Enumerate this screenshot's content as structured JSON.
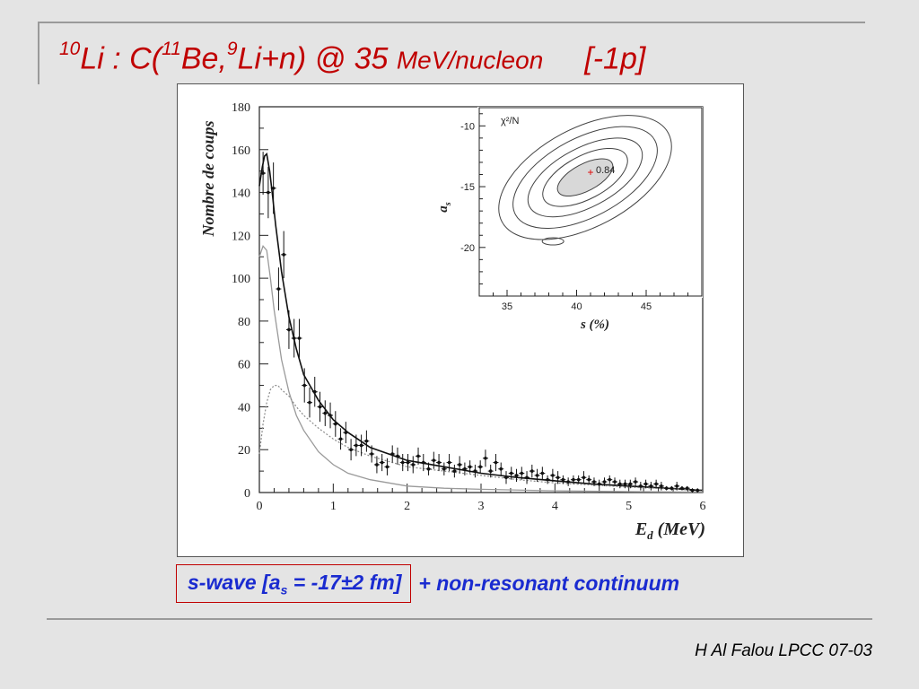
{
  "title": {
    "nucleus_mass": "10",
    "nucleus": "Li : ",
    "reaction_open": "C(",
    "beam_mass": "11",
    "beam": "Be,",
    "frag_mass": "9",
    "frag": "Li+n) @ 35 ",
    "units": "MeV/nucleon",
    "tag": "[-1p]"
  },
  "caption": {
    "boxed_prefix": "s-wave [a",
    "boxed_sub": "s",
    "boxed_suffix": " = -17±2 fm]",
    "rest": "+  non-resonant continuum"
  },
  "footer": "H Al Falou LPCC 07-03",
  "colors": {
    "title": "#c00000",
    "caption": "#1a2bd0",
    "caption_box": "#c00000"
  },
  "chart_data": [
    {
      "type": "line",
      "title": "",
      "xlabel": "E",
      "xlabel_sub": "d",
      "xlabel_unit": " (MeV)",
      "ylabel": "Nombre de coups",
      "xlim": [
        0,
        6
      ],
      "ylim": [
        0,
        180
      ],
      "x_ticks": [
        0,
        1,
        2,
        3,
        4,
        5,
        6
      ],
      "y_ticks": [
        0,
        20,
        40,
        60,
        80,
        100,
        120,
        140,
        160,
        180
      ],
      "grid": false,
      "data_points": {
        "x": [
          0.05,
          0.12,
          0.19,
          0.26,
          0.33,
          0.4,
          0.47,
          0.54,
          0.61,
          0.68,
          0.75,
          0.82,
          0.89,
          0.96,
          1.03,
          1.1,
          1.17,
          1.24,
          1.31,
          1.38,
          1.45,
          1.52,
          1.59,
          1.66,
          1.73,
          1.8,
          1.87,
          1.94,
          2.01,
          2.08,
          2.15,
          2.22,
          2.29,
          2.36,
          2.43,
          2.5,
          2.57,
          2.64,
          2.71,
          2.78,
          2.85,
          2.92,
          2.99,
          3.06,
          3.13,
          3.2,
          3.27,
          3.34,
          3.41,
          3.48,
          3.55,
          3.62,
          3.69,
          3.76,
          3.83,
          3.9,
          3.97,
          4.04,
          4.11,
          4.18,
          4.25,
          4.32,
          4.39,
          4.46,
          4.53,
          4.6,
          4.67,
          4.74,
          4.81,
          4.88,
          4.95,
          5.02,
          5.09,
          5.16,
          5.23,
          5.3,
          5.37,
          5.44,
          5.51,
          5.58,
          5.65,
          5.72,
          5.79,
          5.86,
          5.93
        ],
        "y": [
          149,
          140,
          142,
          95,
          111,
          76,
          72,
          72,
          50,
          42,
          47,
          40,
          37,
          36,
          32,
          25,
          28,
          20,
          22,
          22,
          24,
          18,
          13,
          14,
          12,
          18,
          17,
          14,
          14,
          13,
          17,
          14,
          11,
          15,
          14,
          11,
          14,
          10,
          13,
          11,
          12,
          10,
          12,
          16,
          10,
          14,
          11,
          7,
          9,
          8,
          9,
          7,
          10,
          8,
          9,
          6,
          8,
          7,
          6,
          5,
          6,
          6,
          7,
          6,
          5,
          4,
          5,
          6,
          5,
          4,
          4,
          4,
          5,
          3,
          4,
          3,
          4,
          3,
          2,
          2,
          3,
          2,
          2,
          1,
          1
        ],
        "err": [
          10,
          12,
          12,
          10,
          11,
          9,
          9,
          9,
          8,
          7,
          7,
          7,
          6,
          6,
          6,
          5,
          5,
          5,
          5,
          5,
          5,
          4,
          4,
          4,
          4,
          4,
          4,
          4,
          4,
          4,
          4,
          4,
          3,
          4,
          4,
          3,
          4,
          3,
          4,
          3,
          3,
          3,
          3,
          4,
          3,
          4,
          3,
          3,
          3,
          3,
          3,
          3,
          3,
          3,
          3,
          2,
          3,
          3,
          2,
          2,
          2,
          2,
          3,
          2,
          2,
          2,
          2,
          2,
          2,
          2,
          2,
          2,
          2,
          2,
          2,
          2,
          2,
          2,
          1,
          1,
          2,
          1,
          1,
          1,
          1
        ]
      },
      "curves": [
        {
          "style": "solid-black",
          "x": [
            0,
            0.04,
            0.07,
            0.1,
            0.14,
            0.18,
            0.22,
            0.3,
            0.4,
            0.5,
            0.6,
            0.8,
            1.0,
            1.2,
            1.5,
            2.0,
            2.5,
            3.0,
            3.5,
            4.0,
            4.5,
            5.0,
            5.5,
            6.0
          ],
          "y": [
            143,
            152,
            157,
            158,
            150,
            138,
            125,
            103,
            82,
            67,
            55,
            43,
            34,
            28,
            21,
            15,
            12,
            9,
            7,
            5.5,
            4,
            3,
            2,
            1
          ]
        },
        {
          "style": "solid-gray",
          "x": [
            0,
            0.05,
            0.1,
            0.15,
            0.2,
            0.3,
            0.4,
            0.5,
            0.6,
            0.8,
            1.0,
            1.2,
            1.5,
            2.0,
            2.5,
            3.0,
            4.0,
            5.0,
            6.0
          ],
          "y": [
            110,
            115,
            113,
            100,
            85,
            62,
            47,
            36,
            29,
            19,
            13,
            9,
            6,
            3,
            2,
            1.5,
            0.8,
            0.4,
            0.2
          ]
        },
        {
          "style": "dotted-gray",
          "x": [
            0,
            0.05,
            0.1,
            0.15,
            0.2,
            0.25,
            0.3,
            0.4,
            0.5,
            0.6,
            0.8,
            1.0,
            1.2,
            1.5,
            2.0,
            2.5,
            3.0,
            3.5,
            4.0,
            4.5,
            5.0,
            5.5,
            6.0
          ],
          "y": [
            18,
            32,
            42,
            48,
            50,
            50,
            48,
            45,
            40,
            36,
            30,
            25,
            21,
            17,
            12,
            10,
            8,
            6,
            4.5,
            3.5,
            2.5,
            1.8,
            1
          ]
        }
      ]
    },
    {
      "type": "contour",
      "xlabel": "s (%)",
      "ylabel": "a",
      "ylabel_sub": "s",
      "xlim": [
        33,
        49
      ],
      "ylim": [
        -24,
        -8.5
      ],
      "x_ticks": [
        35,
        40,
        45
      ],
      "y_ticks": [
        -10,
        -15,
        -20
      ],
      "legend_label": "χ²/N",
      "annotation": "0.84",
      "minimum": {
        "x": 41,
        "y": -13.8
      },
      "grid": false
    }
  ]
}
